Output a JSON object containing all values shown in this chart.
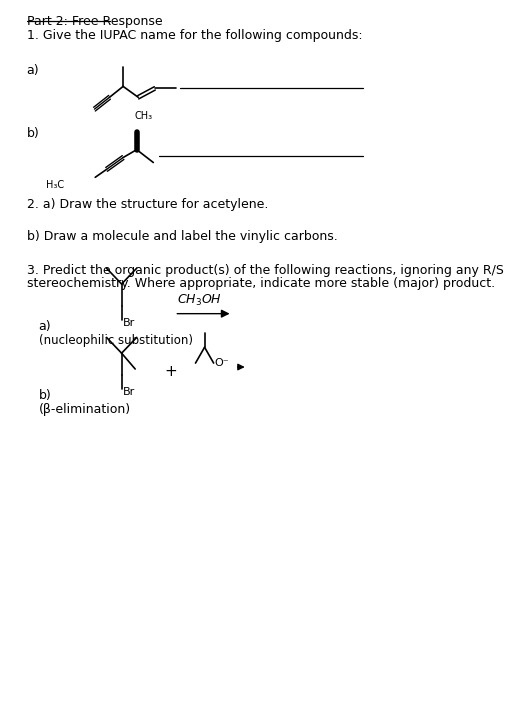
{
  "bg_color": "#ffffff",
  "title": "Part 2: Free Response",
  "q1_text": "1. Give the IUPAC name for the following compounds:",
  "q2a_text": "2. a) Draw the structure for acetylene.",
  "q2b_text": "b) Draw a molecule and label the vinylic carbons.",
  "q3_text_1": "3. Predict the organic product(s) of the following reactions, ignoring any R/S",
  "q3_text_2": "stereochemistry. Where appropriate, indicate more stable (major) product.",
  "q3a_label": "a)",
  "q3a_sublabel": "(nucleophilic substitution)",
  "q3b_label": "b)",
  "q3b_sublabel": "(β-elimination)",
  "line_color": "#000000",
  "text_color": "#000000"
}
